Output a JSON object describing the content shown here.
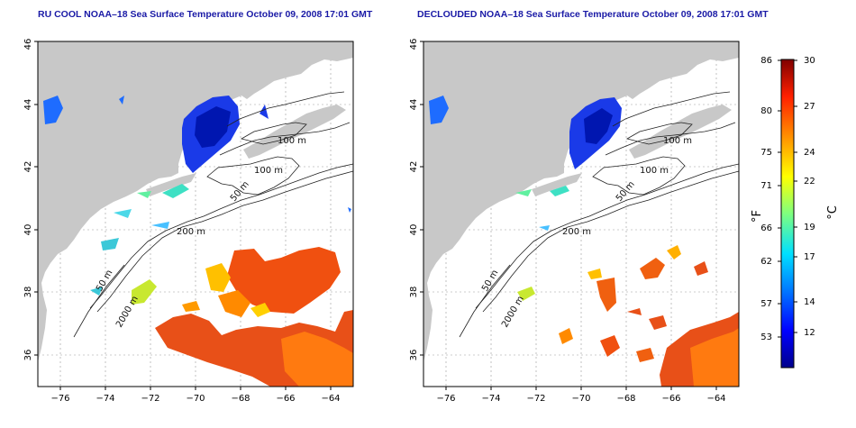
{
  "titles": {
    "left": "RU COOL NOAA–18 Sea Surface Temperature October 09, 2008 17:01 GMT",
    "right": "DECLOUDED NOAA–18 Sea Surface Temperature October 09, 2008 17:01 GMT"
  },
  "axes": {
    "lon_ticks": [
      "−76",
      "−74",
      "−72",
      "−70",
      "−68",
      "−66",
      "−64"
    ],
    "lat_ticks": [
      "46",
      "44",
      "42",
      "40",
      "38",
      "36"
    ],
    "lon_range": [
      -77,
      -63
    ],
    "lat_range": [
      35,
      46
    ]
  },
  "contour_labels": {
    "left": [
      "100 m",
      "100 m",
      "50 m",
      "200 m",
      "50 m",
      "2000 m"
    ],
    "right": [
      "100 m",
      "100 m",
      "50 m",
      "200 m",
      "50 m",
      "2000 m"
    ]
  },
  "colorbar": {
    "f_unit": "°F",
    "c_unit": "°C",
    "f_ticks": [
      "86",
      "80",
      "75",
      "71",
      "66",
      "62",
      "57",
      "53"
    ],
    "c_ticks": [
      "30",
      "27",
      "24",
      "22",
      "19",
      "17",
      "14",
      "12"
    ],
    "c_range": [
      10,
      30
    ],
    "colors": [
      "#00008c",
      "#0000ff",
      "#0078ff",
      "#00e0ff",
      "#7fff7f",
      "#ffff00",
      "#ff9000",
      "#ff2000",
      "#800000"
    ]
  },
  "colors": {
    "land": "#c8c8c8",
    "ocean": "#ffffff",
    "title": "#1a1aa6",
    "grid": "#9a9a9a"
  }
}
